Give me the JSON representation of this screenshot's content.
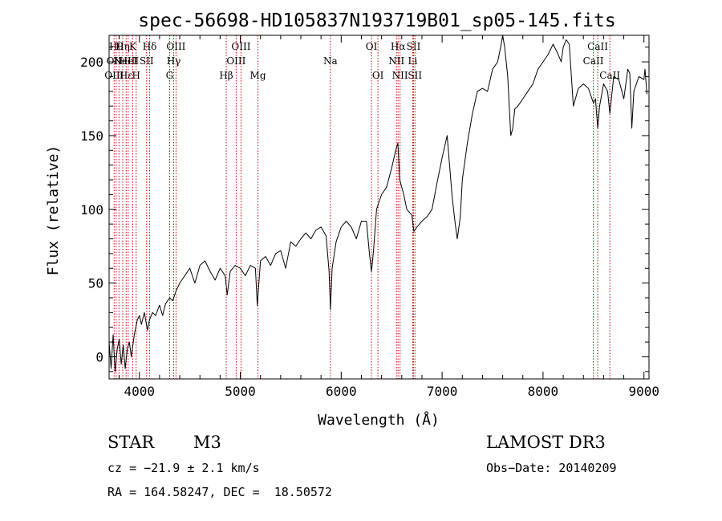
{
  "chart_data": {
    "type": "line",
    "title": "spec-56698-HD105837N193719B01_sp05-145.fits",
    "xlabel": "Wavelength (Å)",
    "ylabel": "Flux (relative)",
    "xlim": [
      3700,
      9050
    ],
    "ylim": [
      -15,
      218
    ],
    "x_ticks": [
      4000,
      5000,
      6000,
      7000,
      8000,
      9000
    ],
    "y_ticks": [
      0,
      50,
      100,
      150,
      200
    ],
    "series": [
      {
        "name": "flux",
        "x": [
          3700,
          3720,
          3740,
          3760,
          3780,
          3800,
          3820,
          3840,
          3860,
          3880,
          3900,
          3920,
          3950,
          3980,
          4000,
          4020,
          4050,
          4080,
          4100,
          4130,
          4160,
          4200,
          4230,
          4260,
          4300,
          4330,
          4360,
          4400,
          4450,
          4500,
          4550,
          4600,
          4650,
          4700,
          4750,
          4800,
          4850,
          4870,
          4900,
          4950,
          5000,
          5050,
          5100,
          5150,
          5168,
          5200,
          5250,
          5300,
          5350,
          5400,
          5450,
          5500,
          5550,
          5600,
          5650,
          5700,
          5750,
          5800,
          5850,
          5880,
          5893,
          5910,
          5950,
          6000,
          6050,
          6100,
          6150,
          6200,
          6250,
          6280,
          6300,
          6320,
          6350,
          6400,
          6450,
          6500,
          6540,
          6562,
          6580,
          6620,
          6650,
          6700,
          6720,
          6750,
          6800,
          6850,
          6900,
          6950,
          7000,
          7050,
          7100,
          7130,
          7150,
          7180,
          7200,
          7250,
          7300,
          7350,
          7400,
          7450,
          7500,
          7550,
          7580,
          7600,
          7620,
          7650,
          7680,
          7700,
          7720,
          7750,
          7800,
          7850,
          7900,
          7950,
          8000,
          8050,
          8100,
          8150,
          8180,
          8200,
          8230,
          8260,
          8300,
          8350,
          8400,
          8450,
          8500,
          8520,
          8542,
          8560,
          8600,
          8640,
          8662,
          8700,
          8750,
          8800,
          8840,
          8860,
          8880,
          8900,
          8950,
          9000,
          9010,
          9030
        ],
        "y": [
          10,
          -8,
          15,
          -10,
          5,
          12,
          -5,
          8,
          -8,
          5,
          10,
          0,
          15,
          25,
          28,
          22,
          30,
          18,
          25,
          30,
          28,
          35,
          28,
          36,
          40,
          38,
          44,
          50,
          55,
          60,
          50,
          62,
          65,
          58,
          52,
          60,
          55,
          42,
          58,
          62,
          60,
          55,
          62,
          60,
          35,
          65,
          68,
          62,
          70,
          72,
          60,
          78,
          75,
          80,
          84,
          80,
          86,
          88,
          82,
          58,
          32,
          60,
          78,
          88,
          92,
          88,
          80,
          92,
          92,
          70,
          58,
          72,
          100,
          110,
          115,
          128,
          140,
          145,
          120,
          110,
          100,
          96,
          85,
          88,
          92,
          95,
          100,
          118,
          135,
          150,
          108,
          90,
          80,
          95,
          120,
          145,
          165,
          180,
          182,
          180,
          195,
          200,
          210,
          218,
          210,
          190,
          150,
          155,
          168,
          170,
          175,
          180,
          185,
          195,
          200,
          205,
          212,
          205,
          200,
          210,
          215,
          212,
          170,
          182,
          185,
          182,
          172,
          175,
          155,
          170,
          185,
          180,
          165,
          190,
          188,
          175,
          195,
          192,
          155,
          180,
          190,
          188,
          195,
          178
        ],
        "color": "#000000"
      }
    ],
    "lines": [
      {
        "wl": 3750,
        "labels": [
          {
            "row": 1,
            "text": "OII"
          },
          {
            "row": 2,
            "text": "OIII"
          }
        ]
      },
      {
        "wl": 3770,
        "labels": [
          {
            "row": 0,
            "text": "Hθ"
          }
        ]
      },
      {
        "wl": 3798,
        "labels": []
      },
      {
        "wl": 3835,
        "labels": [
          {
            "row": 0,
            "text": "Hη"
          }
        ]
      },
      {
        "wl": 3869,
        "labels": [
          {
            "row": 1,
            "text": "NeIII"
          },
          {
            "row": 2,
            "text": "Hε"
          }
        ]
      },
      {
        "wl": 3889,
        "labels": [
          {
            "row": 1,
            "text": "HeI"
          }
        ]
      },
      {
        "wl": 3934,
        "labels": [
          {
            "row": 0,
            "text": "K"
          }
        ]
      },
      {
        "wl": 3968,
        "labels": [
          {
            "row": 2,
            "text": "H"
          }
        ]
      },
      {
        "wl": 4072,
        "labels": [
          {
            "row": 1,
            "text": "SII"
          }
        ]
      },
      {
        "wl": 4102,
        "labels": [
          {
            "row": 0,
            "text": "Hδ"
          }
        ]
      },
      {
        "wl": 4300,
        "labels": [
          {
            "row": 2,
            "text": "G"
          }
        ]
      },
      {
        "wl": 4340,
        "labels": [
          {
            "row": 1,
            "text": "Hγ"
          }
        ]
      },
      {
        "wl": 4363,
        "labels": [
          {
            "row": 0,
            "text": "OIII"
          }
        ]
      },
      {
        "wl": 4861,
        "labels": [
          {
            "row": 2,
            "text": "Hβ"
          }
        ]
      },
      {
        "wl": 4959,
        "labels": [
          {
            "row": 1,
            "text": "OIII"
          }
        ]
      },
      {
        "wl": 5007,
        "labels": [
          {
            "row": 0,
            "text": "OIII"
          }
        ]
      },
      {
        "wl": 5175,
        "labels": [
          {
            "row": 2,
            "text": "Mg"
          }
        ]
      },
      {
        "wl": 5893,
        "labels": [
          {
            "row": 1,
            "text": "Na"
          }
        ]
      },
      {
        "wl": 6300,
        "labels": [
          {
            "row": 0,
            "text": "OI"
          }
        ]
      },
      {
        "wl": 6364,
        "labels": [
          {
            "row": 2,
            "text": "OI"
          }
        ]
      },
      {
        "wl": 6548,
        "labels": [
          {
            "row": 1,
            "text": "NII"
          }
        ]
      },
      {
        "wl": 6563,
        "labels": [
          {
            "row": 0,
            "text": "Hα"
          }
        ]
      },
      {
        "wl": 6583,
        "labels": [
          {
            "row": 2,
            "text": "NII"
          }
        ]
      },
      {
        "wl": 6708,
        "labels": [
          {
            "row": 1,
            "text": "Li"
          }
        ]
      },
      {
        "wl": 6717,
        "labels": [
          {
            "row": 0,
            "text": "SII"
          }
        ]
      },
      {
        "wl": 6731,
        "labels": [
          {
            "row": 2,
            "text": "SII"
          }
        ]
      },
      {
        "wl": 8498,
        "labels": [
          {
            "row": 1,
            "text": "CaII"
          }
        ]
      },
      {
        "wl": 8542,
        "labels": [
          {
            "row": 0,
            "text": "CaII"
          }
        ]
      },
      {
        "wl": 8662,
        "labels": [
          {
            "row": 2,
            "text": "CaII"
          }
        ]
      }
    ]
  },
  "info": {
    "object_class": "STAR",
    "subclass": "M3",
    "survey": "LAMOST DR3",
    "redshift": "cz = −21.9 ± 2.1 km/s",
    "obs_date": "Obs−Date: 20140209",
    "coords": "RA = 164.58247, DEC =  18.50572"
  }
}
